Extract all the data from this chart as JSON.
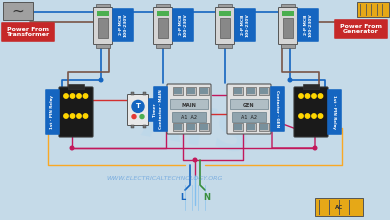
{
  "bg_color": "#c5dae8",
  "watermark": "WWW.ELECTRICALTECHNOLOGY.ORG",
  "power_from_transformer_label": "Power From\nTransformer",
  "power_from_generator_label": "Power From\nGenerator",
  "contactor_main_label": "Contactor - MAIN",
  "contactor_gen_label": "Contactor - GEN",
  "relay1_label": "1st - PIN Relay",
  "relay2_label": "1st - PIN Relay",
  "timer_label": "Timer",
  "colors": {
    "wire_blue": "#1565C0",
    "wire_red": "#D32F2F",
    "wire_brown": "#795548",
    "wire_yellow": "#F9A825",
    "wire_magenta": "#C2185B",
    "wire_green": "#388E3C",
    "wire_light_blue": "#42A5F5"
  },
  "label_bg_blue": "#1565C0",
  "label_bg_red": "#C62828",
  "mcb_body": "#d0d0d0",
  "relay_body": "#1a1a1a",
  "contactor_body": "#c0c0c0",
  "timer_body": "#e8e8e8"
}
